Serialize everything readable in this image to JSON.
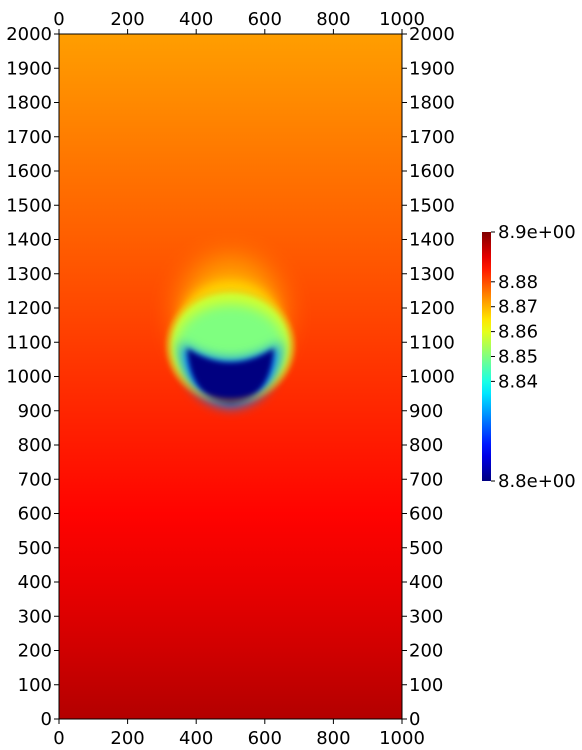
{
  "chart_data": {
    "type": "heatmap",
    "title": "",
    "xlabel": "",
    "ylabel": "",
    "xlim": [
      0,
      1000
    ],
    "ylim": [
      0,
      2000
    ],
    "x_ticks": [
      "0",
      "200",
      "400",
      "600",
      "800",
      "1000"
    ],
    "y_ticks": [
      "0",
      "100",
      "200",
      "300",
      "400",
      "500",
      "600",
      "700",
      "800",
      "900",
      "1000",
      "1100",
      "1200",
      "1300",
      "1400",
      "1500",
      "1600",
      "1700",
      "1800",
      "1900",
      "2000"
    ],
    "axes_on": [
      "top",
      "bottom",
      "left",
      "right"
    ],
    "grid": false,
    "colormap": "jet",
    "colorbar": {
      "range": [
        8.8,
        8.9
      ],
      "position": "right",
      "tick_values": [
        8.8,
        8.84,
        8.85,
        8.86,
        8.87,
        8.88,
        8.9
      ],
      "tick_labels": [
        "8.8e+00",
        "8.84",
        "8.85",
        "8.86",
        "8.87",
        "8.88",
        "8.9e+00"
      ]
    },
    "field": {
      "background_bottom_value": 8.895,
      "background_top_value": 8.872,
      "anomaly": {
        "shape": "bubble",
        "center": [
          500,
          1090
        ],
        "radius": 180,
        "min_value": 8.8,
        "min_center": [
          500,
          1010
        ],
        "plume_top_value": 8.865
      }
    }
  }
}
